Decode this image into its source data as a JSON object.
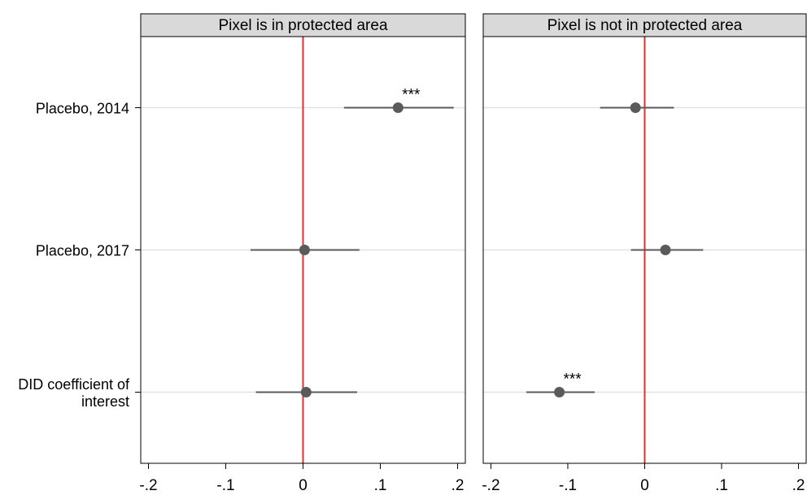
{
  "chart_data": {
    "type": "errorbar",
    "categories": [
      "Placebo, 2014",
      "Placebo, 2017",
      "DID coefficient of interest"
    ],
    "xlim": [
      -0.21,
      0.21
    ],
    "xticks": [
      {
        "value": -0.2,
        "label": "-.2"
      },
      {
        "value": -0.1,
        "label": "-.1"
      },
      0,
      {
        "value": 0.1,
        "label": ".1"
      },
      {
        "value": 0.2,
        "label": ".2"
      }
    ],
    "reference_line": 0,
    "reference_color": "#e03030",
    "color": "#5a5a5a",
    "grid": true,
    "panels": [
      {
        "title": "Pixel is in protected area",
        "values": [
          0.123,
          0.002,
          0.004
        ],
        "lower": [
          0.053,
          -0.068,
          -0.061
        ],
        "upper": [
          0.195,
          0.073,
          0.07
        ],
        "annotations": [
          "***",
          null,
          null
        ]
      },
      {
        "title": "Pixel is not in protected area",
        "values": [
          -0.012,
          0.027,
          -0.111
        ],
        "lower": [
          -0.058,
          -0.018,
          -0.154
        ],
        "upper": [
          0.038,
          0.076,
          -0.065
        ],
        "annotations": [
          null,
          null,
          "***"
        ]
      }
    ]
  }
}
